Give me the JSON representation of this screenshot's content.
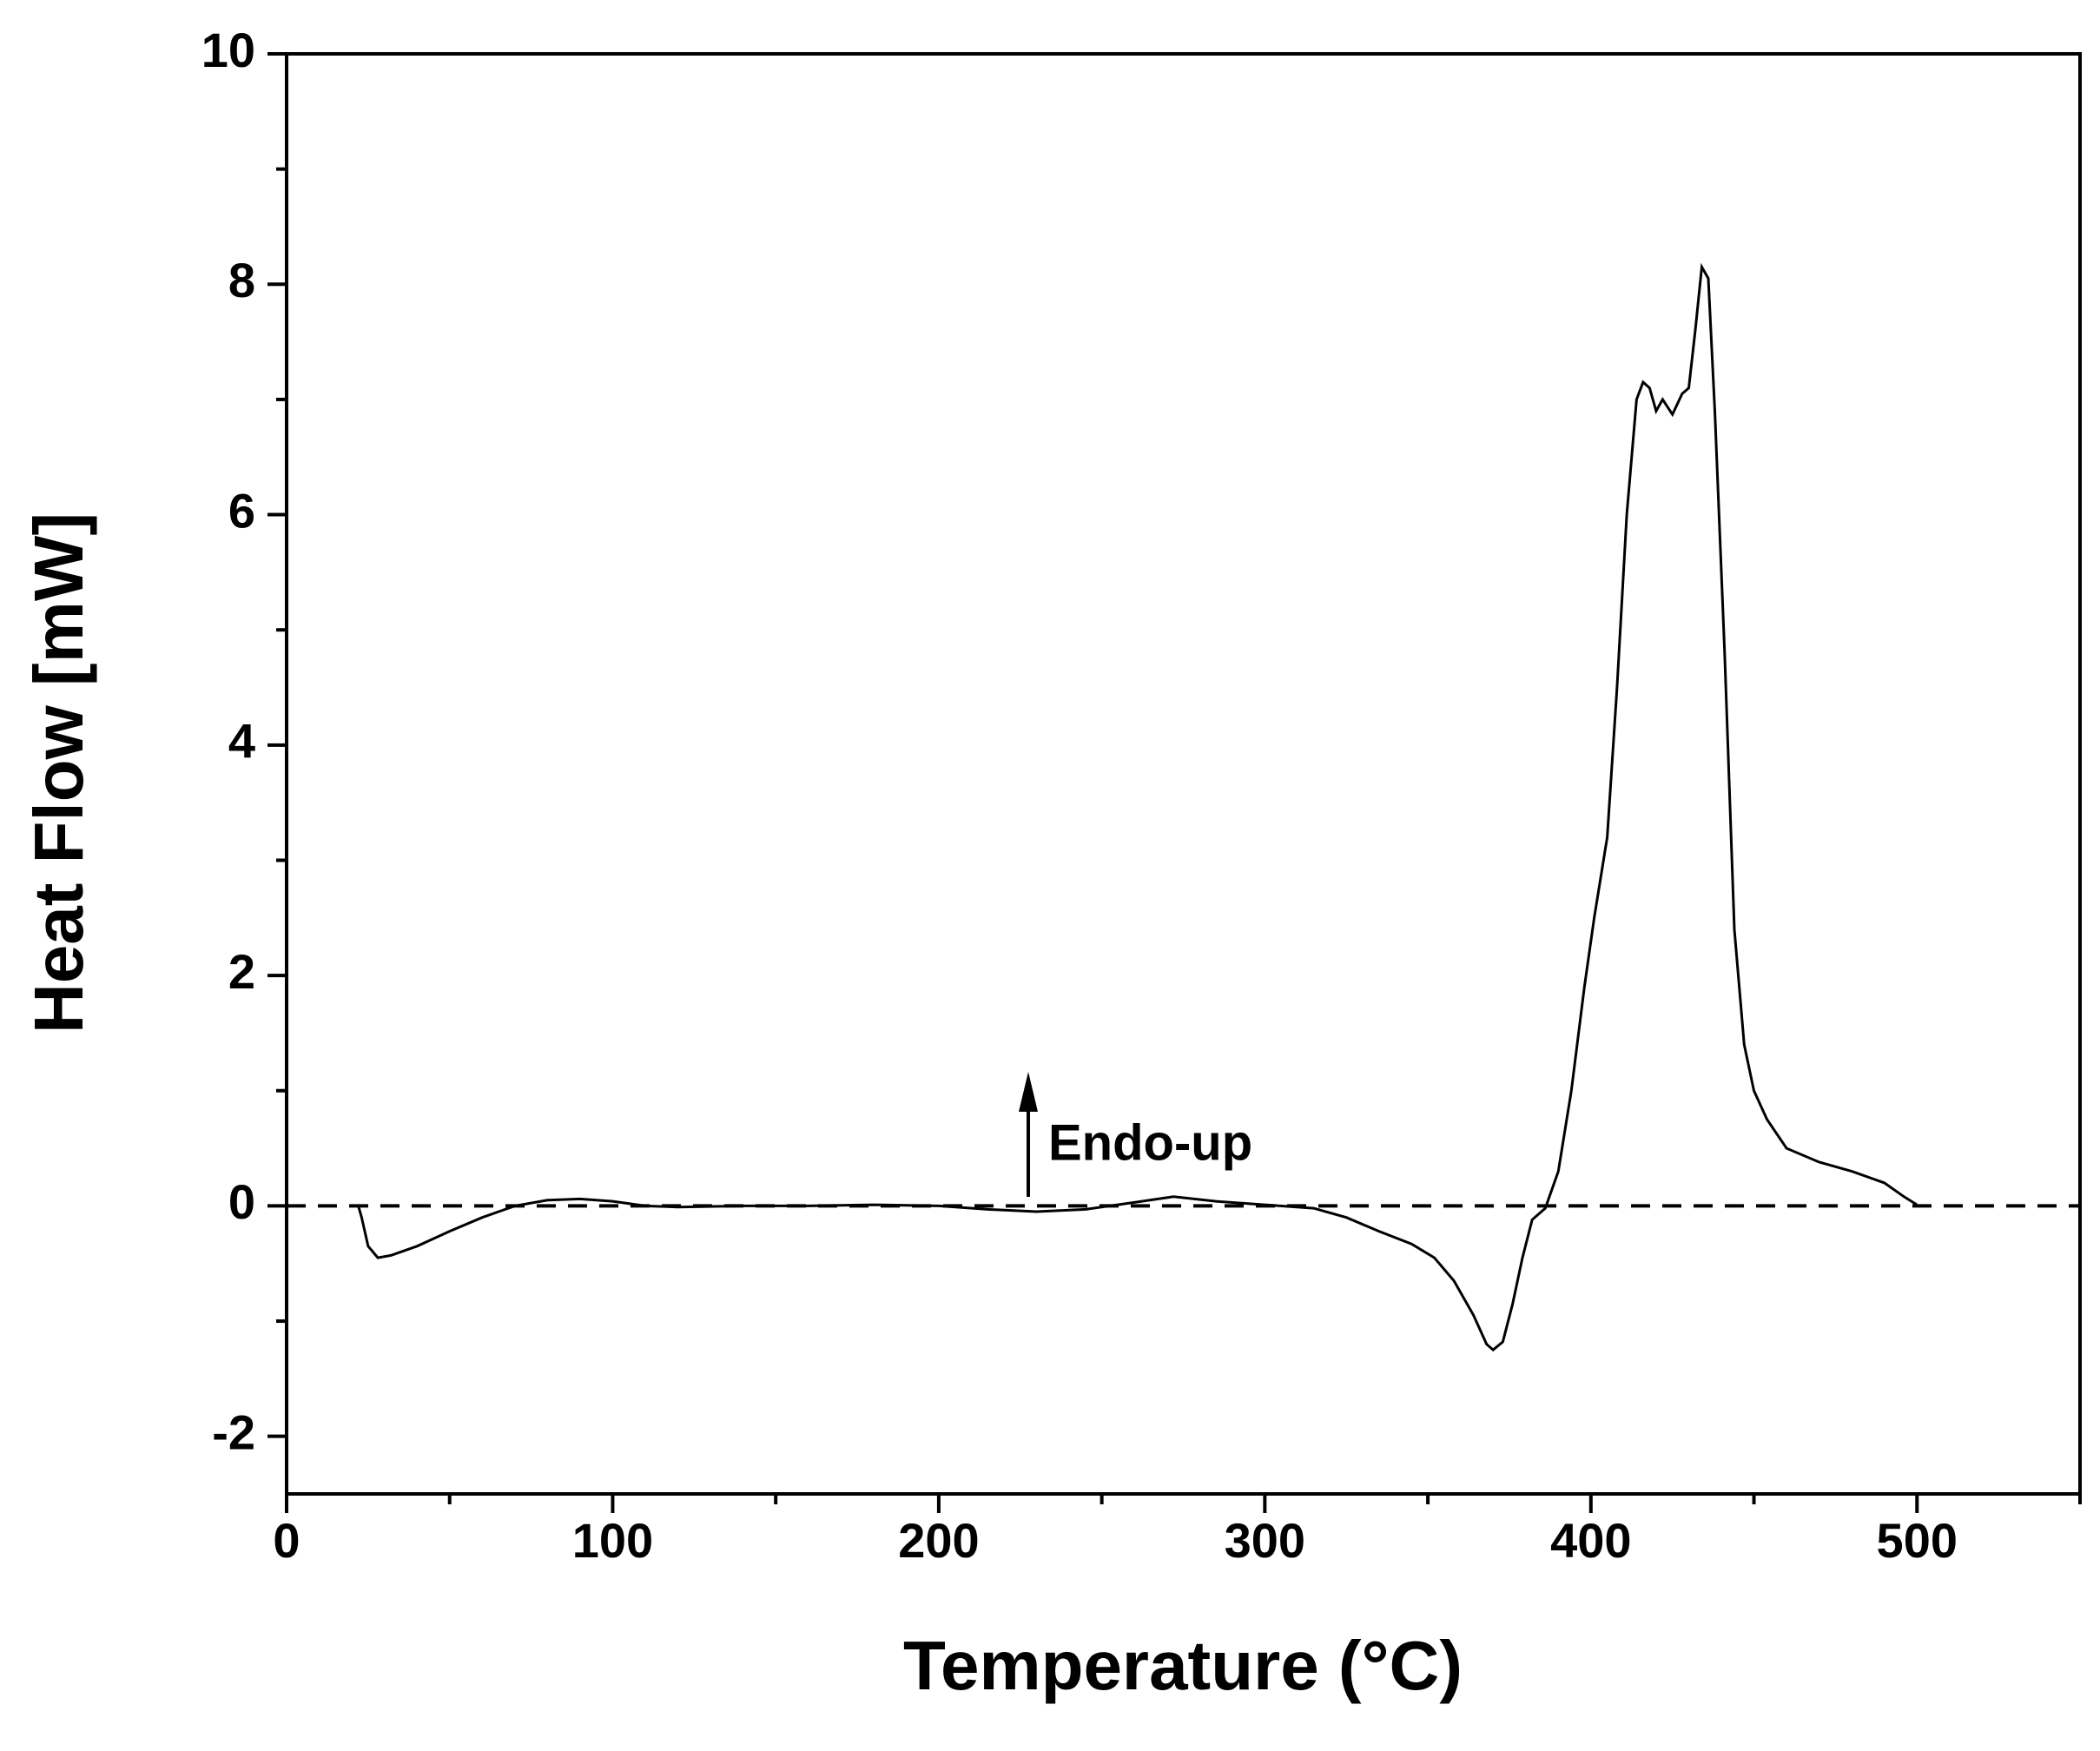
{
  "chart_data": {
    "type": "line",
    "xlabel": "Temperature (°C)",
    "ylabel": "Heat Flow [mW]",
    "annotation": "Endo-up",
    "xlim": [
      0,
      550
    ],
    "xticks": [
      0,
      100,
      200,
      300,
      400,
      500
    ],
    "ylim": [
      -2.5,
      10
    ],
    "yticks": [
      -2,
      0,
      2,
      4,
      6,
      8,
      10
    ],
    "reference_line": 0,
    "color": "#000000",
    "x": [
      22,
      23,
      25,
      28,
      32,
      40,
      50,
      60,
      70,
      80,
      90,
      100,
      110,
      120,
      140,
      160,
      180,
      200,
      215,
      230,
      245,
      260,
      272,
      285,
      300,
      315,
      325,
      335,
      345,
      352,
      358,
      364,
      368,
      370,
      373,
      376,
      379,
      382,
      386,
      390,
      394,
      398,
      401,
      405,
      408,
      411,
      414,
      416,
      418,
      420,
      422,
      425,
      428,
      430,
      432,
      434,
      436,
      438,
      441,
      444,
      447,
      450,
      454,
      460,
      470,
      480,
      490,
      496,
      500
    ],
    "y": [
      0,
      -0.1,
      -0.35,
      -0.45,
      -0.43,
      -0.35,
      -0.22,
      -0.1,
      0,
      0.05,
      0.06,
      0.04,
      0,
      -0.01,
      0,
      0,
      0.01,
      0,
      -0.03,
      -0.05,
      -0.03,
      0.03,
      0.08,
      0.04,
      0.01,
      -0.02,
      -0.1,
      -0.22,
      -0.33,
      -0.45,
      -0.65,
      -0.95,
      -1.2,
      -1.25,
      -1.18,
      -0.85,
      -0.45,
      -0.12,
      -0.02,
      0.3,
      1.0,
      1.9,
      2.5,
      3.2,
      4.5,
      6.0,
      7.0,
      7.15,
      7.1,
      6.9,
      7.0,
      6.87,
      7.05,
      7.1,
      7.6,
      8.15,
      8.05,
      6.9,
      4.8,
      2.4,
      1.4,
      1.0,
      0.75,
      0.5,
      0.38,
      0.3,
      0.2,
      0.08,
      0.01
    ]
  }
}
